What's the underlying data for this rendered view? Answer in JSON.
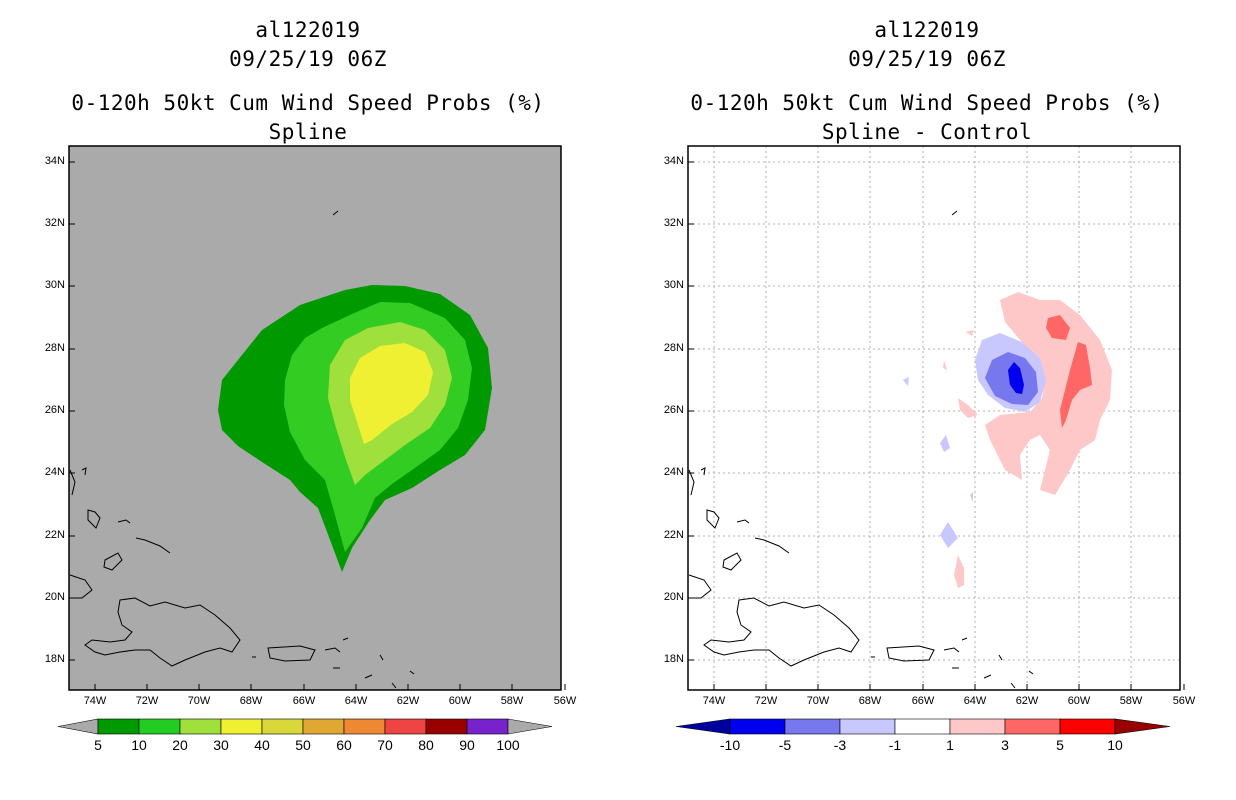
{
  "left": {
    "title1": "al122019",
    "title2": "09/25/19 06Z",
    "title3": "0-120h 50kt Cum Wind Speed Probs (%)",
    "title4": "Spline",
    "background": "#aaaaaa",
    "colorbar": {
      "labels": [
        "5",
        "10",
        "20",
        "30",
        "40",
        "50",
        "60",
        "70",
        "80",
        "90",
        "100"
      ],
      "colors": [
        "#009900",
        "#22cc22",
        "#a0e03c",
        "#f0f033",
        "#d8d83a",
        "#e0a732",
        "#ee8833",
        "#ee4444",
        "#990000",
        "#7722cc"
      ]
    }
  },
  "right": {
    "title1": "al122019",
    "title2": "09/25/19 06Z",
    "title3": "0-120h 50kt Cum Wind Speed Probs (%)",
    "title4": "Spline - Control",
    "colorbar": {
      "labels": [
        "-10",
        "-5",
        "-3",
        "-1",
        "1",
        "3",
        "5",
        "10"
      ],
      "colors": [
        "#0000a0",
        "#0000ee",
        "#7777ee",
        "#c8c8ff",
        "#ffffff",
        "#ffc8c8",
        "#ff6666",
        "#ff0000",
        "#990000"
      ]
    }
  },
  "axes": {
    "lat_labels": [
      "34N",
      "32N",
      "30N",
      "28N",
      "26N",
      "24N",
      "22N",
      "20N",
      "18N"
    ],
    "lon_labels": [
      "74W",
      "72W",
      "70W",
      "68W",
      "66W",
      "64W",
      "62W",
      "60W",
      "58W",
      "56W"
    ]
  }
}
